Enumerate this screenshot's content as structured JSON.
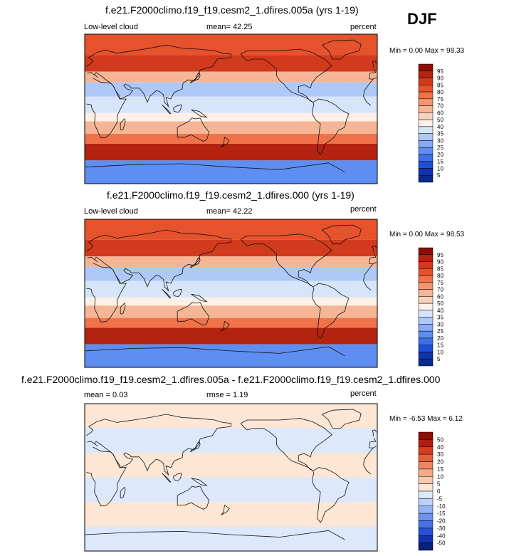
{
  "season_label": "DJF",
  "colors": {
    "abs_scale": [
      "#0a2a8c",
      "#1233b0",
      "#1e4fd8",
      "#3c6fe8",
      "#5f8ef2",
      "#86acf6",
      "#aec8f8",
      "#d7e5fb",
      "#fdf0e6",
      "#f9d2bc",
      "#f6b596",
      "#f3966f",
      "#ef7249",
      "#e5522c",
      "#d13a1c",
      "#b42210",
      "#8c0e05"
    ],
    "diff_scale": [
      "#0a1f7a",
      "#1233b0",
      "#2650d6",
      "#4a70e6",
      "#6f91ef",
      "#96b2f5",
      "#bcd0f9",
      "#dce8fc",
      "#fde6d4",
      "#f9c8ae",
      "#f5a987",
      "#ef865f",
      "#e5603a",
      "#d43c1e",
      "#b21d0c",
      "#8c0e05"
    ]
  },
  "chart_data": [
    {
      "type": "heatmap",
      "title": "f.e21.F2000climo.f19_f19.cesm2_1.dfires.005a (yrs 1-19)",
      "left_label": "Low-level cloud",
      "center_label": "mean=  42.25",
      "right_label": "percent",
      "stats": "Min =   0.00 Max =  98.33",
      "min": 0.0,
      "max": 98.33,
      "mean": 42.25,
      "colorbar_levels": [
        "95",
        "90",
        "85",
        "80",
        "75",
        "70",
        "60",
        "50",
        "40",
        "35",
        "30",
        "25",
        "20",
        "15",
        "10",
        "5"
      ],
      "bands": [
        {
          "lat": [
            90,
            65
          ],
          "value": 80
        },
        {
          "lat": [
            65,
            45
          ],
          "value": 85
        },
        {
          "lat": [
            45,
            32
          ],
          "value": 60
        },
        {
          "lat": [
            32,
            15
          ],
          "value": 30
        },
        {
          "lat": [
            15,
            -5
          ],
          "value": 35
        },
        {
          "lat": [
            -5,
            -15
          ],
          "value": 45
        },
        {
          "lat": [
            -15,
            -30
          ],
          "value": 60
        },
        {
          "lat": [
            -30,
            -42
          ],
          "value": 75
        },
        {
          "lat": [
            -42,
            -62
          ],
          "value": 90
        },
        {
          "lat": [
            -62,
            -90
          ],
          "value": 20
        }
      ]
    },
    {
      "type": "heatmap",
      "title": "f.e21.F2000climo.f19_f19.cesm2_1.dfires.000 (yrs 1-19)",
      "left_label": "Low-level cloud",
      "center_label": "mean=  42.22",
      "right_label": "percent",
      "stats": "Min =   0.00 Max =  98.53",
      "min": 0.0,
      "max": 98.53,
      "mean": 42.22,
      "colorbar_levels": [
        "95",
        "90",
        "85",
        "80",
        "75",
        "70",
        "60",
        "50",
        "40",
        "35",
        "30",
        "25",
        "20",
        "15",
        "10",
        "5"
      ],
      "bands": [
        {
          "lat": [
            90,
            65
          ],
          "value": 80
        },
        {
          "lat": [
            65,
            45
          ],
          "value": 85
        },
        {
          "lat": [
            45,
            32
          ],
          "value": 60
        },
        {
          "lat": [
            32,
            15
          ],
          "value": 30
        },
        {
          "lat": [
            15,
            -5
          ],
          "value": 35
        },
        {
          "lat": [
            -5,
            -15
          ],
          "value": 45
        },
        {
          "lat": [
            -15,
            -30
          ],
          "value": 60
        },
        {
          "lat": [
            -30,
            -42
          ],
          "value": 75
        },
        {
          "lat": [
            -42,
            -62
          ],
          "value": 90
        },
        {
          "lat": [
            -62,
            -90
          ],
          "value": 20
        }
      ]
    },
    {
      "type": "heatmap",
      "title": "f.e21.F2000climo.f19_f19.cesm2_1.dfires.005a - f.e21.F2000climo.f19_f19.cesm2_1.dfires.000",
      "left_label": "mean =   0.03",
      "center_label": "rmse =   1.19",
      "right_label": "percent",
      "stats": "Min =  -6.53 Max =   6.12",
      "min": -6.53,
      "max": 6.12,
      "mean": 0.03,
      "rmse": 1.19,
      "colorbar_levels": [
        "50",
        "40",
        "30",
        "20",
        "15",
        "10",
        "5",
        "0",
        "-5",
        "-10",
        "-15",
        "-20",
        "-30",
        "-40",
        "-50"
      ],
      "bands": [
        {
          "lat": [
            90,
            60
          ],
          "value": 2
        },
        {
          "lat": [
            60,
            30
          ],
          "value": -2
        },
        {
          "lat": [
            30,
            0
          ],
          "value": 2
        },
        {
          "lat": [
            0,
            -30
          ],
          "value": -2
        },
        {
          "lat": [
            -30,
            -60
          ],
          "value": 2
        },
        {
          "lat": [
            -60,
            -90
          ],
          "value": -2
        }
      ]
    }
  ]
}
